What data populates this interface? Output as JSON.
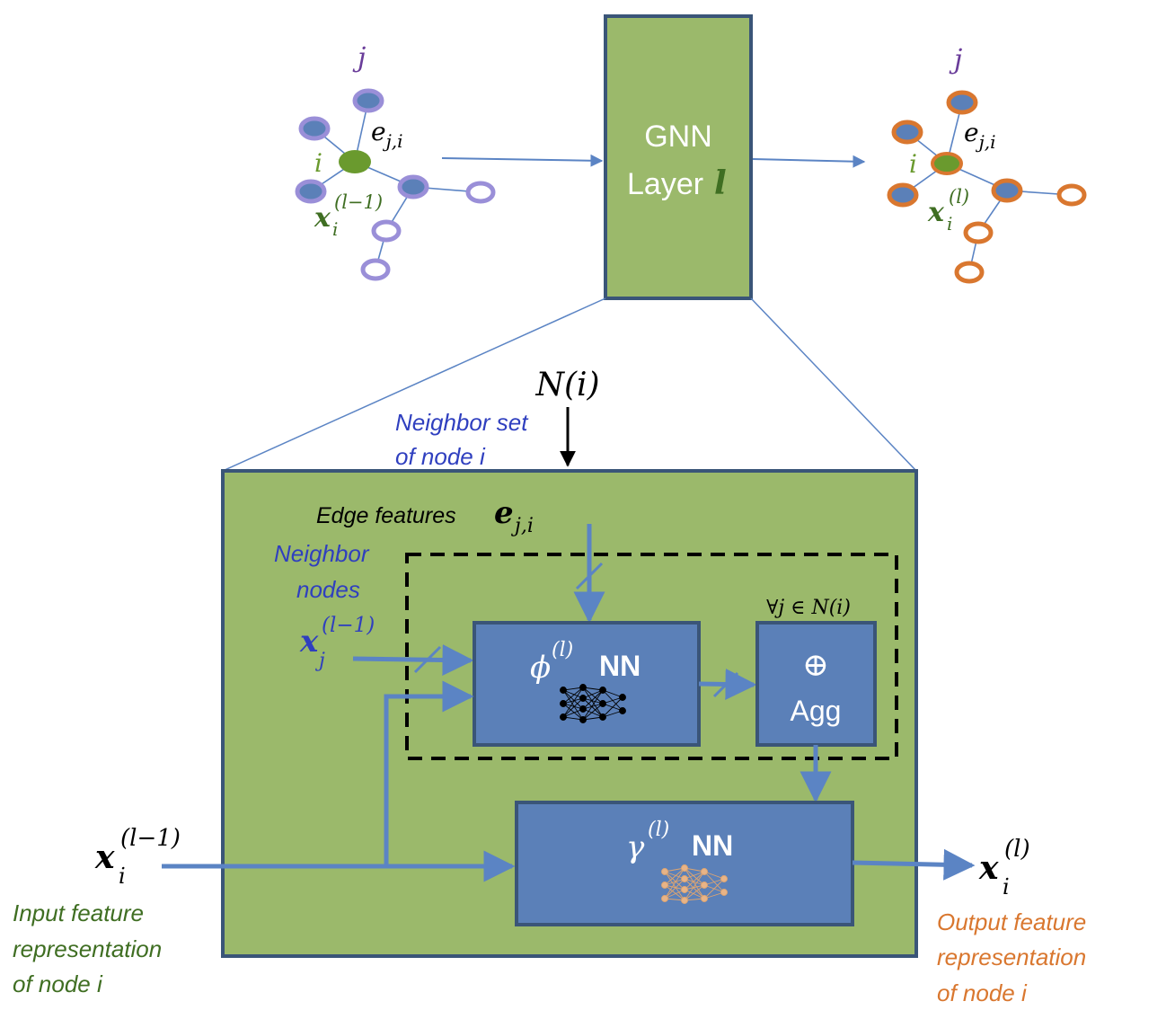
{
  "diagram": {
    "gnn_layer": {
      "line1": "GNN",
      "line2": "Layer",
      "var": "l"
    },
    "input_graph": {
      "j": "j",
      "edge_e": "e",
      "edge_sub": "j,i",
      "i": "i",
      "x": "x",
      "x_sub": "i",
      "x_sup": "(l−1)"
    },
    "output_graph": {
      "j": "j",
      "edge_e": "e",
      "edge_sub": "j,i",
      "i": "i",
      "x": "x",
      "x_sub": "i",
      "x_sup": "(l)"
    },
    "neighbor_set": {
      "symbol": "N(i)",
      "caption_line1": "Neighbor set",
      "caption_line2": "of node i"
    },
    "edge_features": {
      "label": "Edge features",
      "e": "e",
      "sub": "j,i"
    },
    "neighbor_nodes": {
      "line1": "Neighbor",
      "line2": "nodes",
      "x": "x",
      "x_sub": "j",
      "x_sup": "(l−1)"
    },
    "phi_block": {
      "symbol": "ϕ",
      "sup": "(l)",
      "label": "NN"
    },
    "agg_block": {
      "forall": "∀j ∈ N(i)",
      "oplus": "⊕",
      "label": "Agg"
    },
    "gamma_block": {
      "symbol": "γ",
      "sup": "(l)",
      "label": "NN"
    },
    "input": {
      "x": "x",
      "x_sub": "i",
      "x_sup": "(l−1)",
      "caption_line1": "Input feature",
      "caption_line2": "representation",
      "caption_line3": "of node i"
    },
    "output": {
      "x": "x",
      "x_sub": "i",
      "x_sup": "(l)",
      "caption_line1": "Output feature",
      "caption_line2": "representation",
      "caption_line3": "of node i"
    }
  },
  "colors": {
    "green_fill": "#9bb96b",
    "blue_box": "#5b80b8",
    "border_navy": "#3a5578",
    "arrow_blue": "#5b84c4",
    "purple": "#9a8fd8",
    "orange": "#d9772f",
    "dark_green_text": "#3f6e22",
    "blue_text": "#2f3fbf"
  }
}
